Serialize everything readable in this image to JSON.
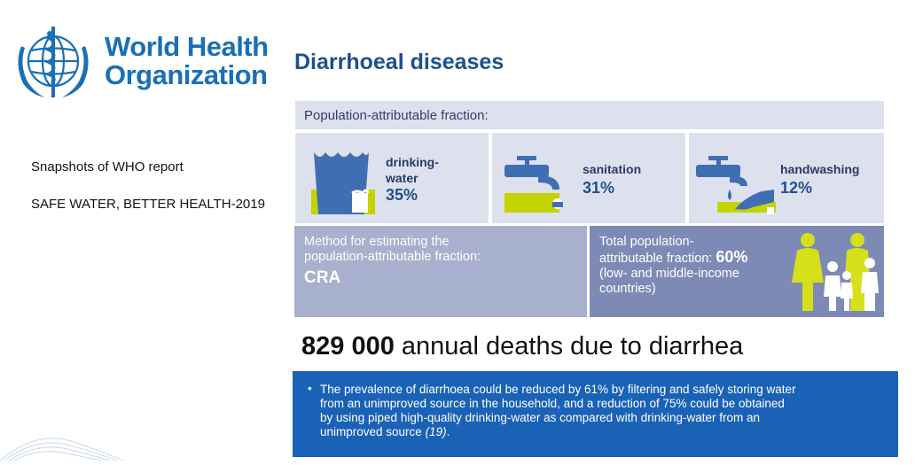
{
  "logo": {
    "line1": "World Health",
    "line2": "Organization"
  },
  "sidebar": {
    "snapshot": "Snapshots of WHO report",
    "report": "SAFE WATER, BETTER HEALTH-2019"
  },
  "title": "Diarrhoeal diseases",
  "paf": {
    "header": "Population-attributable fraction:",
    "items": [
      {
        "label_line1": "drinking-",
        "label_line2": "water",
        "percent": "35%",
        "icon": "water-glass-icon"
      },
      {
        "label_line1": "sanitation",
        "label_line2": "",
        "percent": "31%",
        "icon": "tap-icon"
      },
      {
        "label_line1": "handwashing",
        "label_line2": "",
        "percent": "12%",
        "icon": "handwashing-icon"
      }
    ]
  },
  "method": {
    "line1": "Method for estimating the",
    "line2": "population-attributable fraction:",
    "value": "CRA"
  },
  "total": {
    "line1": "Total population-",
    "line2_prefix": "attributable fraction: ",
    "value": "60%",
    "line3": "(low- and middle-income",
    "line4": "countries)"
  },
  "deaths": {
    "number": "829 000",
    "text": " annual deaths due to diarrhea"
  },
  "note": {
    "bullet": "•",
    "lines": [
      "The prevalence of diarrhoea could be reduced by 61% by filtering and safely storing water",
      "from an unimproved source in the household, and a reduction of 75% could be obtained",
      "by using piped high-quality drinking-water as compared with drinking-water from an"
    ],
    "last_line": "unimproved source ",
    "citation": "(19)",
    "end": "."
  },
  "colors": {
    "who_blue": "#1a6fb6",
    "lime": "#c5d300",
    "panel": "#dde1ee",
    "note_blue": "#1a62b5"
  }
}
